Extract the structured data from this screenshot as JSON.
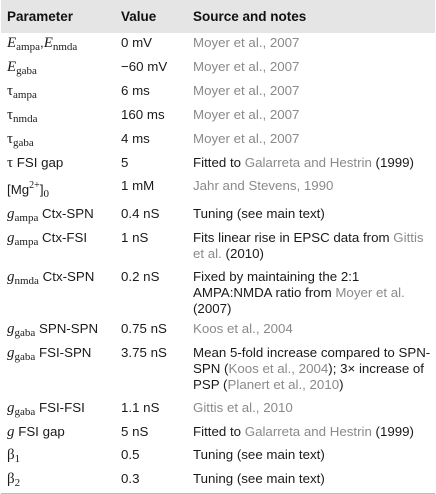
{
  "header": {
    "parameter": "Parameter",
    "value": "Value",
    "source": "Source and notes"
  },
  "rows": [
    {
      "param_parts": [
        {
          "t": "sym",
          "v": "E"
        },
        {
          "t": "sub",
          "v": "ampa"
        },
        {
          "t": "txt",
          "v": ","
        },
        {
          "t": "sym",
          "v": "E"
        },
        {
          "t": "sub",
          "v": "nmda"
        }
      ],
      "value": "0 mV",
      "source": [
        {
          "c": true,
          "v": "Moyer et al., 2007"
        }
      ]
    },
    {
      "param_parts": [
        {
          "t": "sym",
          "v": "E"
        },
        {
          "t": "sub",
          "v": "gaba"
        }
      ],
      "value": "−60 mV",
      "source": [
        {
          "c": true,
          "v": "Moyer et al., 2007"
        }
      ]
    },
    {
      "param_parts": [
        {
          "t": "greek",
          "v": "τ"
        },
        {
          "t": "sub",
          "v": "ampa"
        }
      ],
      "value": "6 ms",
      "source": [
        {
          "c": true,
          "v": "Moyer et al., 2007"
        }
      ]
    },
    {
      "param_parts": [
        {
          "t": "greek",
          "v": "τ"
        },
        {
          "t": "sub",
          "v": "nmda"
        }
      ],
      "value": "160 ms",
      "source": [
        {
          "c": true,
          "v": "Moyer et al., 2007"
        }
      ]
    },
    {
      "param_parts": [
        {
          "t": "greek",
          "v": "τ"
        },
        {
          "t": "sub",
          "v": "gaba"
        }
      ],
      "value": "4 ms",
      "source": [
        {
          "c": true,
          "v": "Moyer et al., 2007"
        }
      ]
    },
    {
      "param_parts": [
        {
          "t": "greek",
          "v": "τ"
        },
        {
          "t": "txt",
          "v": " FSI gap"
        }
      ],
      "value": "5",
      "source": [
        {
          "c": false,
          "v": "Fitted to "
        },
        {
          "c": true,
          "v": "Galarreta and Hestrin"
        },
        {
          "c": false,
          "v": " (1999)"
        }
      ]
    },
    {
      "param_parts": [
        {
          "t": "txt",
          "v": "[Mg"
        },
        {
          "t": "sup",
          "v": "2+"
        },
        {
          "t": "txt",
          "v": "]"
        },
        {
          "t": "sub",
          "v": "0"
        }
      ],
      "value": "1 mM",
      "source": [
        {
          "c": true,
          "v": "Jahr and Stevens, 1990"
        }
      ]
    },
    {
      "param_parts": [
        {
          "t": "sym",
          "v": "g"
        },
        {
          "t": "sub",
          "v": "ampa"
        },
        {
          "t": "txt",
          "v": " Ctx-SPN"
        }
      ],
      "value": "0.4 nS",
      "source": [
        {
          "c": false,
          "v": "Tuning (see main text)"
        }
      ]
    },
    {
      "param_parts": [
        {
          "t": "sym",
          "v": "g"
        },
        {
          "t": "sub",
          "v": "ampa"
        },
        {
          "t": "txt",
          "v": " Ctx-FSI"
        }
      ],
      "value": "1 nS",
      "source": [
        {
          "c": false,
          "v": "Fits linear rise in EPSC data from "
        },
        {
          "c": true,
          "v": "Gittis"
        },
        {
          "c": false,
          "v": " "
        },
        {
          "c": true,
          "v": "et al."
        },
        {
          "c": false,
          "v": " (2010)"
        }
      ]
    },
    {
      "param_parts": [
        {
          "t": "sym",
          "v": "g"
        },
        {
          "t": "sub",
          "v": "nmda"
        },
        {
          "t": "txt",
          "v": " Ctx-SPN"
        }
      ],
      "value": "0.2 nS",
      "source": [
        {
          "c": false,
          "v": "Fixed by maintaining the 2:1 AMPA:NMDA ratio from "
        },
        {
          "c": true,
          "v": "Moyer et al."
        },
        {
          "c": false,
          "v": " (2007)"
        }
      ]
    },
    {
      "param_parts": [
        {
          "t": "sym",
          "v": "g"
        },
        {
          "t": "sub",
          "v": "gaba"
        },
        {
          "t": "txt",
          "v": " SPN-SPN"
        }
      ],
      "value": "0.75 nS",
      "source": [
        {
          "c": true,
          "v": "Koos et al., 2004"
        }
      ]
    },
    {
      "param_parts": [
        {
          "t": "sym",
          "v": "g"
        },
        {
          "t": "sub",
          "v": "gaba"
        },
        {
          "t": "txt",
          "v": " FSI-SPN"
        }
      ],
      "value": "3.75 nS",
      "source": [
        {
          "c": false,
          "v": "Mean 5-fold increase compared to SPN-SPN ("
        },
        {
          "c": true,
          "v": "Koos et al., 2004"
        },
        {
          "c": false,
          "v": "); 3× increase of PSP ("
        },
        {
          "c": true,
          "v": "Planert et al., 2010"
        },
        {
          "c": false,
          "v": ")"
        }
      ]
    },
    {
      "param_parts": [
        {
          "t": "sym",
          "v": "g"
        },
        {
          "t": "sub",
          "v": "gaba"
        },
        {
          "t": "txt",
          "v": " FSI-FSI"
        }
      ],
      "value": "1.1 nS",
      "source": [
        {
          "c": true,
          "v": "Gittis et al., 2010"
        }
      ]
    },
    {
      "param_parts": [
        {
          "t": "sym",
          "v": "g"
        },
        {
          "t": "txt",
          "v": " FSI gap"
        }
      ],
      "value": "5 nS",
      "source": [
        {
          "c": false,
          "v": "Fitted to "
        },
        {
          "c": true,
          "v": "Galarreta and Hestrin"
        },
        {
          "c": false,
          "v": " (1999)"
        }
      ]
    },
    {
      "param_parts": [
        {
          "t": "greek",
          "v": "β"
        },
        {
          "t": "sub",
          "v": "1"
        }
      ],
      "value": "0.5",
      "source": [
        {
          "c": false,
          "v": "Tuning (see main text)"
        }
      ]
    },
    {
      "param_parts": [
        {
          "t": "greek",
          "v": "β"
        },
        {
          "t": "sub",
          "v": "2"
        }
      ],
      "value": "0.3",
      "source": [
        {
          "c": false,
          "v": "Tuning (see main text)"
        }
      ]
    }
  ]
}
